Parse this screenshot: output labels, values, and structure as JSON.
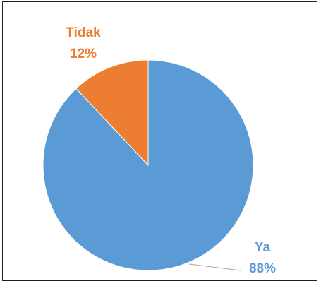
{
  "chart_data": {
    "type": "pie",
    "slices": [
      {
        "label": "Ya",
        "value": 88,
        "percent_label": "88%",
        "color": "#5b9bd5"
      },
      {
        "label": "Tidak",
        "value": 12,
        "percent_label": "12%",
        "color": "#ed7d31"
      }
    ],
    "title": "",
    "legend": "none",
    "start_angle_deg": 0,
    "direction": "clockwise"
  }
}
